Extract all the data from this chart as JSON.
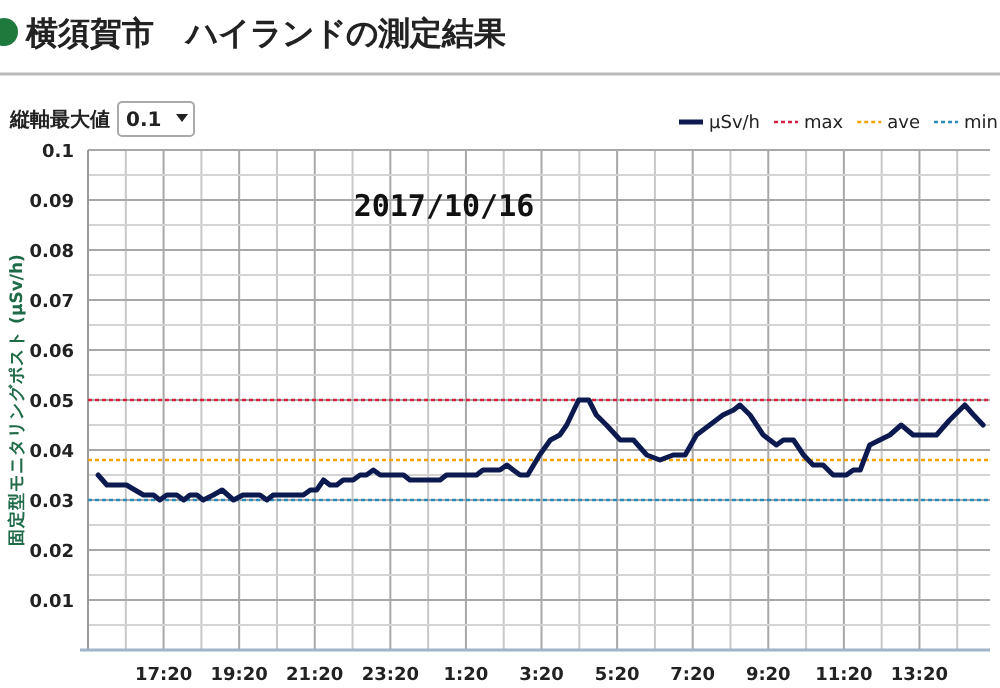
{
  "chart_data": {
    "type": "line",
    "title": "横須賀市　ハイランドの測定結果",
    "annotations": [
      "縦軸最大値",
      "0.1",
      "2017/10/16"
    ],
    "ylabel": "固定型モニタリングポスト (μSv/h)",
    "xlim": [
      "2017-10-15T15:20",
      "2017-10-16T15:12"
    ],
    "ylim": [
      0,
      0.1
    ],
    "xticks": [
      {
        "value": "2017-10-15T16:20",
        "label": null
      },
      {
        "value": "2017-10-15T17:20",
        "label": "17:20"
      },
      {
        "value": "2017-10-15T18:20",
        "label": null
      },
      {
        "value": "2017-10-15T19:20",
        "label": "19:20"
      },
      {
        "value": "2017-10-15T20:20",
        "label": null
      },
      {
        "value": "2017-10-15T21:20",
        "label": "21:20"
      },
      {
        "value": "2017-10-15T22:20",
        "label": null
      },
      {
        "value": "2017-10-15T23:20",
        "label": "23:20"
      },
      {
        "value": "2017-10-16T00:20",
        "label": null
      },
      {
        "value": "2017-10-16T01:20",
        "label": "1:20"
      },
      {
        "value": "2017-10-16T02:20",
        "label": null
      },
      {
        "value": "2017-10-16T03:20",
        "label": "3:20"
      },
      {
        "value": "2017-10-16T04:20",
        "label": null
      },
      {
        "value": "2017-10-16T05:20",
        "label": "5:20"
      },
      {
        "value": "2017-10-16T06:20",
        "label": null
      },
      {
        "value": "2017-10-16T07:20",
        "label": "7:20"
      },
      {
        "value": "2017-10-16T08:20",
        "label": null
      },
      {
        "value": "2017-10-16T09:20",
        "label": "9:20"
      },
      {
        "value": "2017-10-16T10:20",
        "label": null
      },
      {
        "value": "2017-10-16T11:20",
        "label": "11:20"
      },
      {
        "value": "2017-10-16T12:20",
        "label": null
      },
      {
        "value": "2017-10-16T13:20",
        "label": "13:20"
      },
      {
        "value": "2017-10-16T14:20",
        "label": null
      }
    ],
    "yticks": [
      {
        "value": 0.005,
        "label": null
      },
      0.01,
      {
        "value": 0.015,
        "label": null
      },
      0.02,
      {
        "value": 0.025,
        "label": null
      },
      0.03,
      {
        "value": 0.035,
        "label": null
      },
      0.04,
      {
        "value": 0.045,
        "label": null
      },
      0.05,
      {
        "value": 0.055,
        "label": null
      },
      0.06,
      {
        "value": 0.065,
        "label": null
      },
      0.07,
      {
        "value": 0.075,
        "label": null
      },
      0.08,
      {
        "value": 0.085,
        "label": null
      },
      0.09,
      {
        "value": 0.095,
        "label": null
      },
      0.1
    ],
    "grid": true,
    "legend": "top right",
    "marker": "none",
    "line_style": "solid",
    "series": [
      {
        "name": "μSv/h",
        "color": "#0d1a4f",
        "x": [
          "2017-10-15T15:36",
          "2017-10-15T15:50",
          "2017-10-15T16:21",
          "2017-10-15T16:48",
          "2017-10-15T17:04",
          "2017-10-15T17:14",
          "2017-10-15T17:25",
          "2017-10-15T17:41",
          "2017-10-15T17:52",
          "2017-10-15T18:02",
          "2017-10-15T18:13",
          "2017-10-15T18:23",
          "2017-10-15T18:39",
          "2017-10-15T18:53",
          "2017-10-15T19:11",
          "2017-10-15T19:26",
          "2017-10-15T19:53",
          "2017-10-15T20:04",
          "2017-10-15T20:14",
          "2017-10-15T21:02",
          "2017-10-15T21:13",
          "2017-10-15T21:23",
          "2017-10-15T21:34",
          "2017-10-15T21:44",
          "2017-10-15T21:55",
          "2017-10-15T22:05",
          "2017-10-15T22:21",
          "2017-10-15T22:32",
          "2017-10-15T22:42",
          "2017-10-15T22:53",
          "2017-10-15T23:04",
          "2017-10-15T23:41",
          "2017-10-15T23:51",
          "2017-10-16T00:39",
          "2017-10-16T00:49",
          "2017-10-16T01:37",
          "2017-10-16T01:47",
          "2017-10-16T02:14",
          "2017-10-16T02:25",
          "2017-10-16T02:35",
          "2017-10-16T02:46",
          "2017-10-16T02:58",
          "2017-10-16T03:17",
          "2017-10-16T03:34",
          "2017-10-16T03:49",
          "2017-10-16T04:00",
          "2017-10-16T04:19",
          "2017-10-16T04:35",
          "2017-10-16T04:47",
          "2017-10-16T05:03",
          "2017-10-16T05:25",
          "2017-10-16T05:46",
          "2017-10-16T06:07",
          "2017-10-16T06:28",
          "2017-10-16T06:49",
          "2017-10-16T07:08",
          "2017-10-16T07:26",
          "2017-10-16T07:47",
          "2017-10-16T08:08",
          "2017-10-16T08:25",
          "2017-10-16T08:35",
          "2017-10-16T08:51",
          "2017-10-16T09:12",
          "2017-10-16T09:33",
          "2017-10-16T09:44",
          "2017-10-16T10:00",
          "2017-10-16T10:16",
          "2017-10-16T10:31",
          "2017-10-16T10:47",
          "2017-10-16T11:03",
          "2017-10-16T11:24",
          "2017-10-16T11:35",
          "2017-10-16T11:46",
          "2017-10-16T12:01",
          "2017-10-16T12:17",
          "2017-10-16T12:33",
          "2017-10-16T12:51",
          "2017-10-16T13:10",
          "2017-10-16T13:47",
          "2017-10-16T14:08",
          "2017-10-16T14:32",
          "2017-10-16T14:46",
          "2017-10-16T15:01"
        ],
        "values": [
          0.035,
          0.033,
          0.033,
          0.031,
          0.031,
          0.03,
          0.031,
          0.031,
          0.03,
          0.031,
          0.031,
          0.03,
          0.031,
          0.032,
          0.03,
          0.031,
          0.031,
          0.03,
          0.031,
          0.031,
          0.032,
          0.032,
          0.034,
          0.033,
          0.033,
          0.034,
          0.034,
          0.035,
          0.035,
          0.036,
          0.035,
          0.035,
          0.034,
          0.034,
          0.035,
          0.035,
          0.036,
          0.036,
          0.037,
          0.036,
          0.035,
          0.035,
          0.039,
          0.042,
          0.043,
          0.045,
          0.05,
          0.05,
          0.047,
          0.045,
          0.042,
          0.042,
          0.039,
          0.038,
          0.039,
          0.039,
          0.043,
          0.045,
          0.047,
          0.048,
          0.049,
          0.047,
          0.043,
          0.041,
          0.042,
          0.042,
          0.039,
          0.037,
          0.037,
          0.035,
          0.035,
          0.036,
          0.036,
          0.041,
          0.042,
          0.043,
          0.045,
          0.043,
          0.043,
          0.046,
          0.049,
          0.047,
          0.045
        ]
      }
    ],
    "ref_lines": [
      {
        "axis": "y",
        "value": 0.05,
        "label": "max",
        "color": "#d4223f",
        "line_style": "dotted"
      },
      {
        "axis": "y",
        "value": 0.038,
        "label": "ave",
        "color": "#f5a300",
        "line_style": "dotted"
      },
      {
        "axis": "y",
        "value": 0.03,
        "label": "min",
        "color": "#2a8ab8",
        "line_style": "dotted"
      }
    ]
  }
}
